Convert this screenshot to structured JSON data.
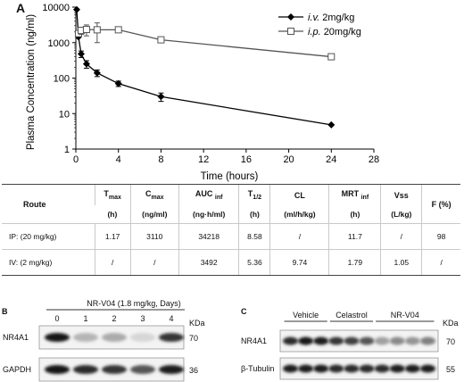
{
  "panels": {
    "a": "A",
    "b": "B",
    "c": "C"
  },
  "chart_data": {
    "type": "line",
    "ylabel": "Plasma Concentration (ng/ml)",
    "xlabel": "Time (hours)",
    "xlim": [
      0,
      28
    ],
    "ylim": [
      1,
      10000
    ],
    "yscale": "log",
    "xticks": [
      0,
      4,
      8,
      12,
      16,
      20,
      24,
      28
    ],
    "yticks": [
      1,
      10,
      100,
      1000,
      10000
    ],
    "legend_position": "top-right",
    "series": [
      {
        "name": "i.v. 2mg/kg",
        "style": "solid-diamond",
        "color": "#000000",
        "x": [
          0.08,
          0.25,
          0.5,
          1,
          2,
          4,
          8,
          24
        ],
        "y": [
          8500,
          1450,
          480,
          250,
          140,
          70,
          30,
          4.8
        ],
        "err": [
          0,
          0,
          100,
          60,
          30,
          12,
          8,
          0
        ]
      },
      {
        "name": "i.p. 20mg/kg",
        "style": "open-square",
        "color": "#555555",
        "x": [
          0.25,
          0.5,
          1,
          2,
          4,
          8,
          24
        ],
        "y": [
          1800,
          2200,
          2350,
          2300,
          2300,
          1200,
          400
        ],
        "err": [
          0,
          500,
          800,
          1300,
          0,
          0,
          0
        ]
      }
    ],
    "legend": {
      "iv_route": "i.v.",
      "iv_dose": "2mg/kg",
      "ip_route": "i.p.",
      "ip_dose": "20mg/kg"
    }
  },
  "table": {
    "headers": {
      "route": "Route",
      "tmax": "T",
      "tmax_sub": "max",
      "cmax": "C",
      "cmax_sub": "max",
      "auc": "AUC",
      "auc_sub": "inf",
      "thalf": "T",
      "thalf_sub": "1/2",
      "cl": "CL",
      "mrt": "MRT",
      "mrt_sub": "inf",
      "vss": "Vss",
      "f": "F (%)"
    },
    "units": {
      "tmax": "(h)",
      "cmax": "(ng/ml)",
      "auc": "(ng·h/ml)",
      "thalf": "(h)",
      "cl": "(ml/h/kg)",
      "mrt": "(h)",
      "vss": "(L/kg)"
    },
    "rows": [
      {
        "route": "IP: (20 mg/kg)",
        "tmax": "1.17",
        "cmax": "3110",
        "auc": "34218",
        "thalf": "8.58",
        "cl": "/",
        "mrt": "11.7",
        "vss": "/",
        "f": "98"
      },
      {
        "route": "IV: (2 mg/kg)",
        "tmax": "/",
        "cmax": "/",
        "auc": "3492",
        "thalf": "5.36",
        "cl": "9.74",
        "mrt": "1.79",
        "vss": "1.05",
        "f": "/"
      }
    ]
  },
  "blot_b": {
    "treatment": "NR-V04 (1.8 mg/kg, Days)",
    "lanes": [
      "0",
      "1",
      "2",
      "3",
      "4"
    ],
    "rows": [
      {
        "label": "NR4A1",
        "kda": "70",
        "levels": [
          1.0,
          0.25,
          0.3,
          0.1,
          0.85
        ]
      },
      {
        "label": "GAPDH",
        "kda": "36",
        "levels": [
          1.0,
          0.9,
          0.85,
          0.7,
          0.95
        ]
      }
    ],
    "kda_label": "KDa"
  },
  "blot_c": {
    "groups": [
      "Vehicle",
      "Celastrol",
      "NR-V04"
    ],
    "rows": [
      {
        "label": "NR4A1",
        "kda": "70",
        "levels": [
          0.9,
          1.0,
          0.95,
          0.85,
          0.8,
          0.7,
          0.35,
          0.45,
          0.4,
          0.5
        ]
      },
      {
        "label": "β-Tubulin",
        "kda": "55",
        "levels": [
          0.95,
          0.95,
          0.95,
          0.9,
          0.9,
          0.9,
          0.9,
          0.95,
          0.95,
          0.95
        ]
      }
    ],
    "kda_label": "KDa"
  }
}
